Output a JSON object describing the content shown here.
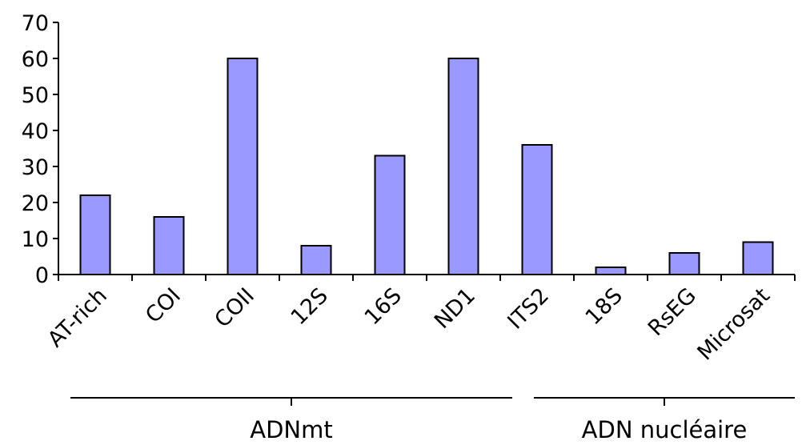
{
  "chart_data": {
    "type": "bar",
    "title": "",
    "xlabel": "",
    "ylabel": "",
    "ylim": [
      0,
      70
    ],
    "yticks": [
      0,
      10,
      20,
      30,
      40,
      50,
      60,
      70
    ],
    "grid": false,
    "legend": "none",
    "categories": [
      "AT-rich",
      "COI",
      "COII",
      "12S",
      "16S",
      "ND1",
      "ITS2",
      "18S",
      "RsEG",
      "Microsat"
    ],
    "values": [
      22,
      16,
      60,
      8,
      33,
      60,
      36,
      2,
      6,
      9
    ],
    "bar_color": "#9999ff",
    "bar_stroke": "#000000",
    "groups": [
      {
        "label": "ADNmt",
        "first_category": 0,
        "last_category": 6
      },
      {
        "label": "ADN nucléaire",
        "first_category": 7,
        "last_category": 9
      }
    ]
  }
}
